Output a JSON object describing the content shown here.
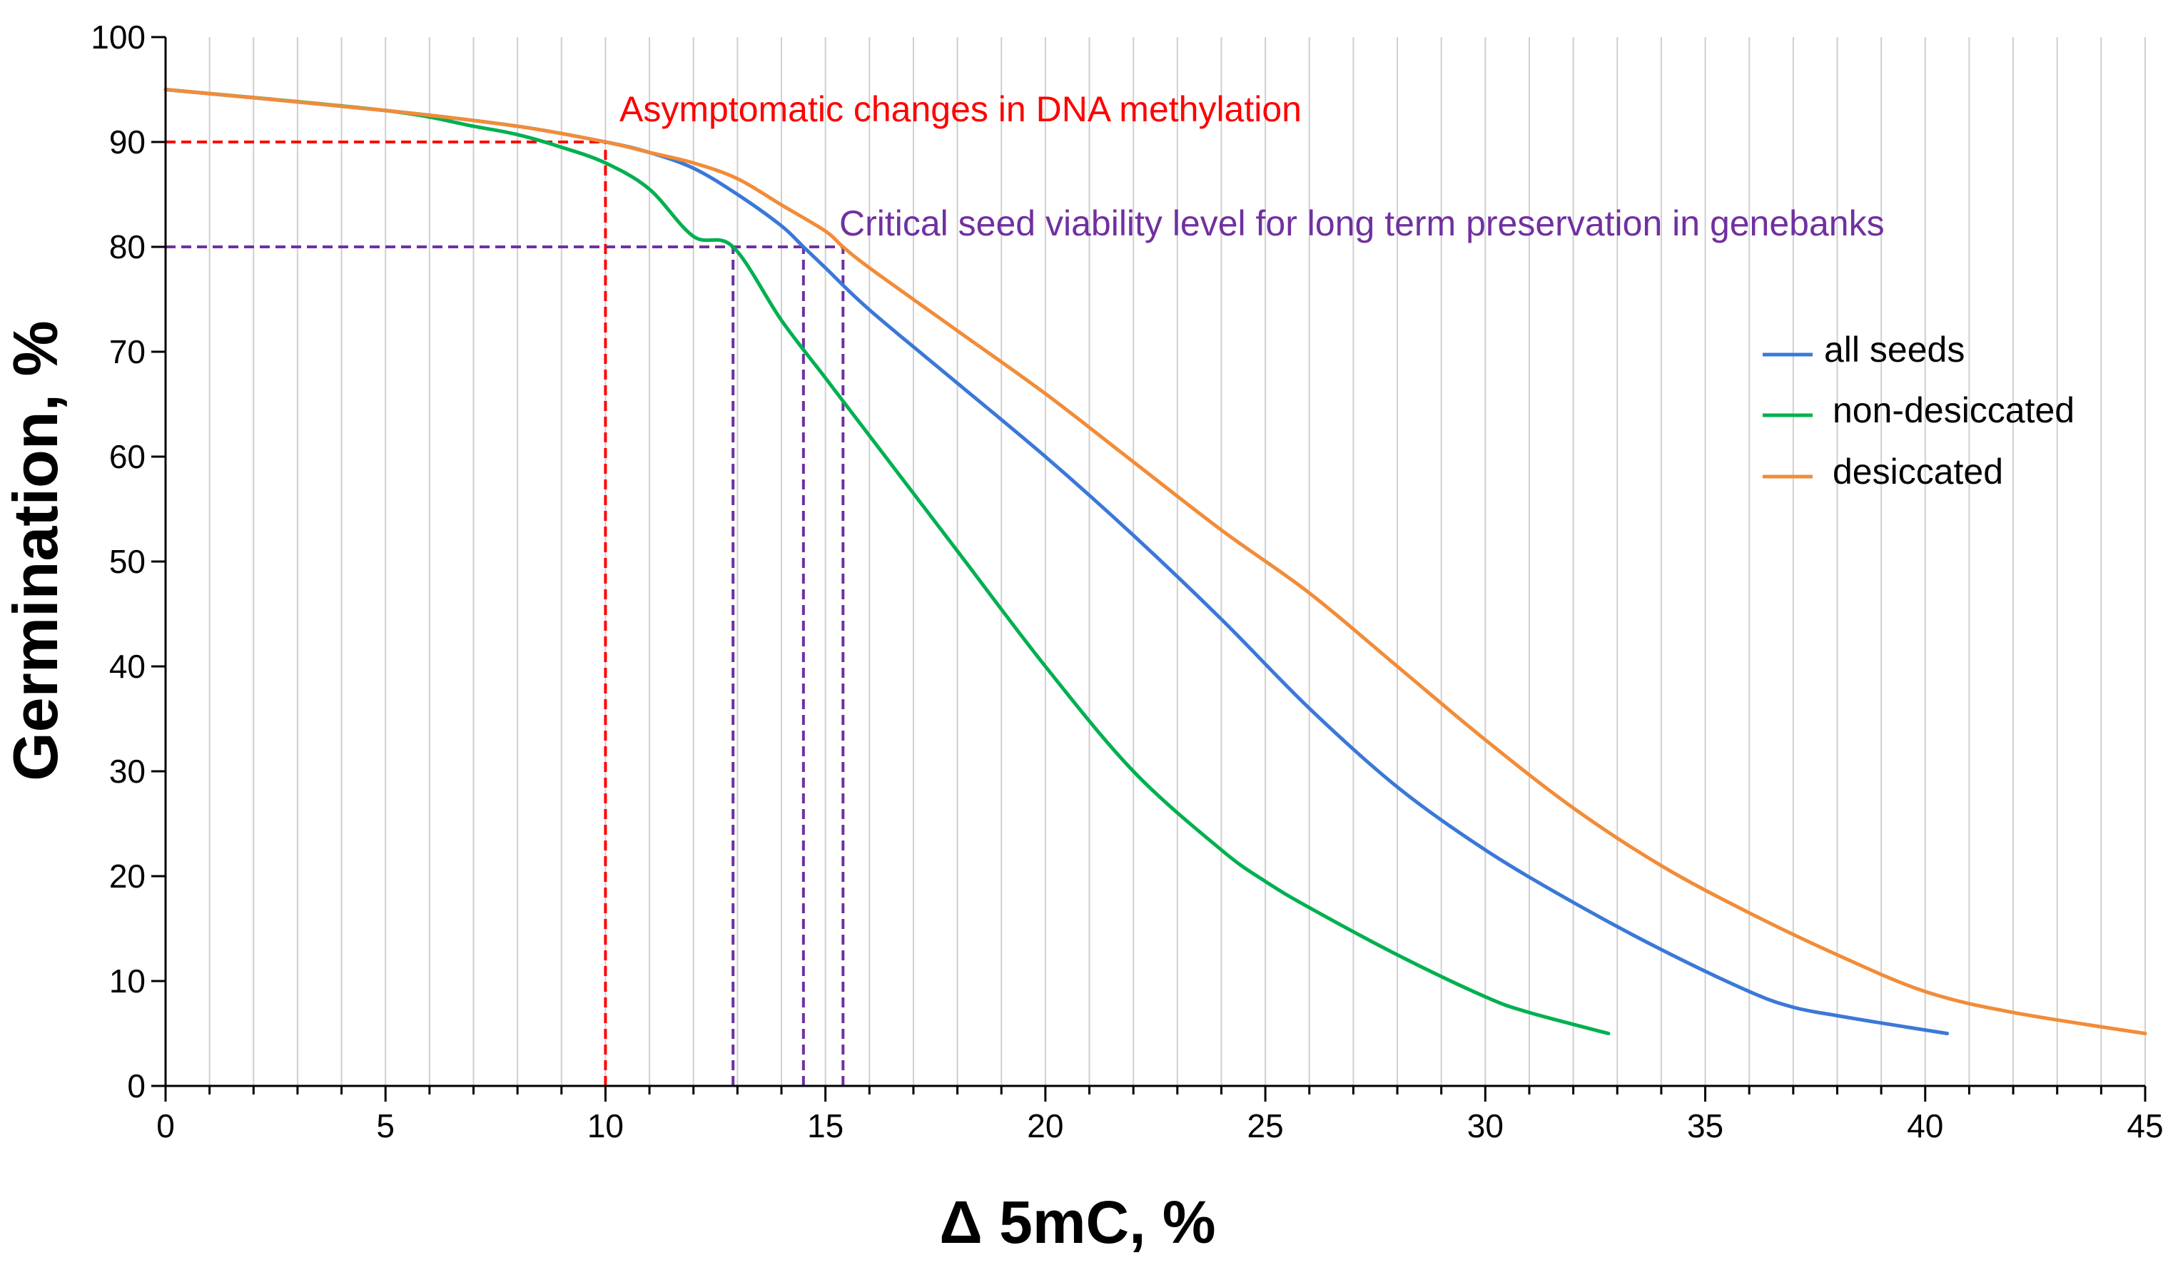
{
  "chart_data": {
    "type": "line",
    "title": "",
    "xlabel": "Δ 5mC, %",
    "ylabel": "Germination, %",
    "xlim": [
      0,
      45
    ],
    "ylim": [
      0,
      100
    ],
    "x_ticks": [
      0,
      5,
      10,
      15,
      20,
      25,
      30,
      35,
      40,
      45
    ],
    "y_ticks": [
      0,
      10,
      20,
      30,
      40,
      50,
      60,
      70,
      80,
      90,
      100
    ],
    "x_minor_step": 1,
    "grid": "vertical lines every 1 unit",
    "legend_position": "right",
    "series": [
      {
        "name": "all seeds",
        "color": "#3b78d8",
        "x": [
          0,
          5,
          8,
          10,
          11,
          12,
          13,
          14,
          14.5,
          15,
          16,
          18,
          20,
          22,
          24,
          26,
          28,
          30,
          32,
          34,
          36,
          37,
          38,
          39,
          40.5
        ],
        "y": [
          95,
          93,
          91.5,
          90,
          89,
          87.5,
          85,
          82,
          80,
          78,
          74,
          67,
          60,
          52.5,
          44.5,
          36,
          28.5,
          22.5,
          17.5,
          13,
          9,
          7.5,
          6.7,
          6,
          5
        ]
      },
      {
        "name": "non-desiccated",
        "color": "#00b050",
        "x": [
          0,
          5,
          7,
          8,
          9,
          10,
          11,
          12,
          12.9,
          14,
          15,
          16,
          18,
          20,
          22,
          24,
          25,
          26,
          28,
          30,
          31,
          32.8
        ],
        "y": [
          95,
          93,
          91.5,
          90.7,
          89.5,
          88,
          85.5,
          81,
          80,
          73,
          67.5,
          62,
          51,
          40,
          30,
          22.5,
          19.5,
          17,
          12.5,
          8.5,
          7,
          5
        ]
      },
      {
        "name": "desiccated",
        "color": "#f28c38",
        "x": [
          0,
          5,
          8,
          10,
          11,
          12,
          13,
          14,
          15,
          15.4,
          16,
          18,
          20,
          22,
          24,
          26,
          28,
          30,
          32,
          34,
          36,
          38,
          40,
          42,
          45
        ],
        "y": [
          95,
          93,
          91.5,
          90,
          89,
          88,
          86.5,
          84,
          81.5,
          80,
          78,
          72,
          66,
          59.5,
          53,
          47,
          40,
          33,
          26.5,
          21,
          16.5,
          12.5,
          9,
          7,
          5
        ]
      }
    ],
    "reference_lines": [
      {
        "type": "h",
        "y": 90,
        "x_from": 0,
        "x_to": 10,
        "color": "#ff0000"
      },
      {
        "type": "v",
        "x": 10,
        "y_from": 0,
        "y_to": 90,
        "color": "#ff0000"
      },
      {
        "type": "h",
        "y": 80,
        "x_from": 0,
        "x_to": 15.4,
        "color": "#7030a0"
      },
      {
        "type": "v",
        "x": 12.9,
        "y_from": 0,
        "y_to": 80,
        "color": "#7030a0"
      },
      {
        "type": "v",
        "x": 14.5,
        "y_from": 0,
        "y_to": 80,
        "color": "#7030a0"
      },
      {
        "type": "v",
        "x": 15.4,
        "y_from": 0,
        "y_to": 80,
        "color": "#7030a0"
      }
    ],
    "annotations": [
      {
        "text": "Asymptomatic changes in DNA methylation",
        "color": "#ff0000"
      },
      {
        "text": "Critical seed viability level for long term preservation in genebanks",
        "color": "#7030a0"
      }
    ]
  }
}
